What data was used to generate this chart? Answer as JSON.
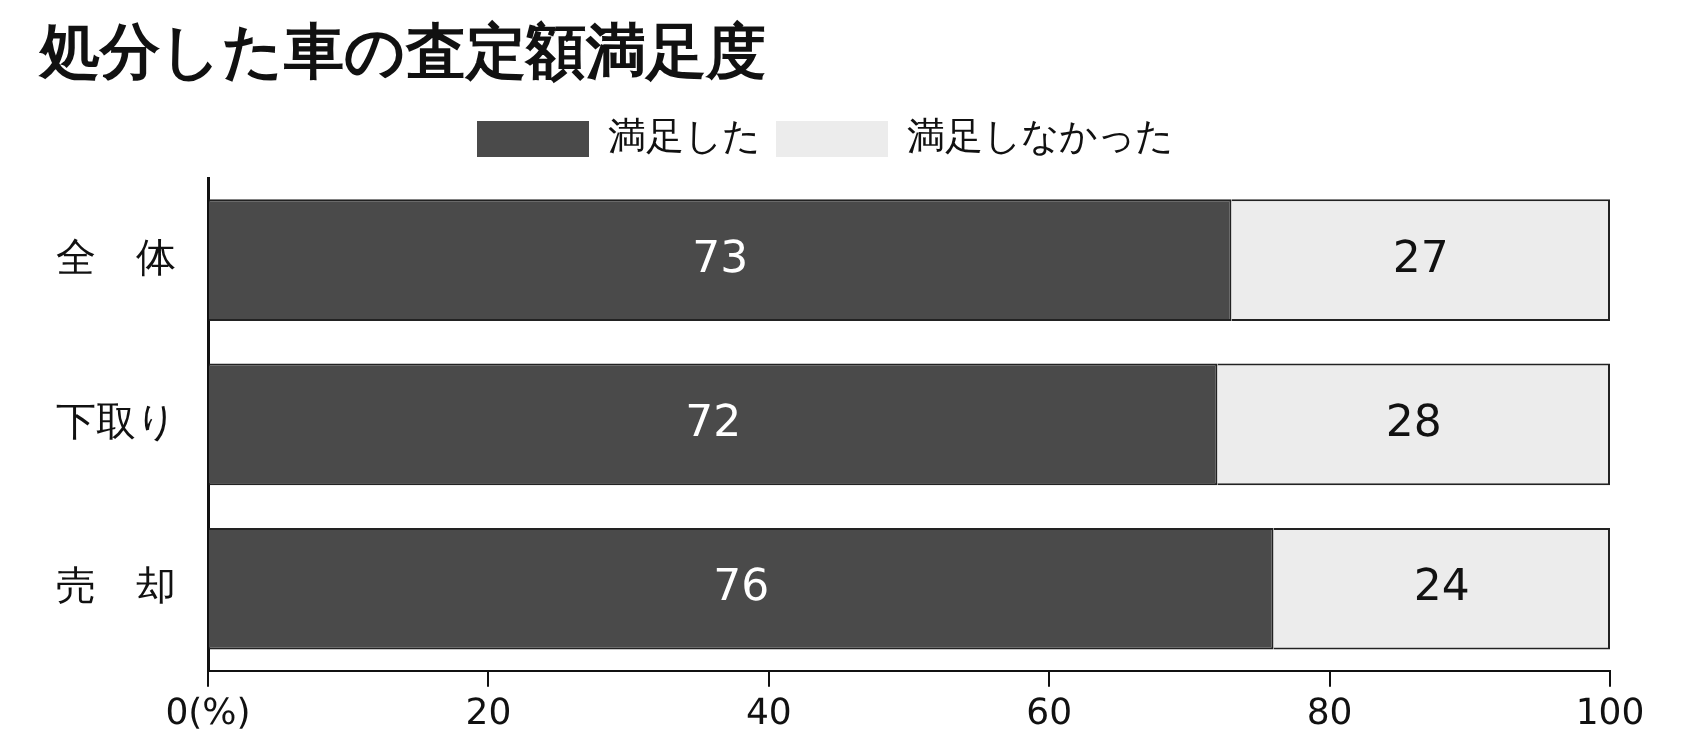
{
  "chart_data": {
    "type": "bar",
    "orientation": "horizontal",
    "stacked": true,
    "title": "処分した車の査定額満足度",
    "categories": [
      "全　体",
      "下取り",
      "売　却"
    ],
    "series": [
      {
        "name": "満足した",
        "color": "#4a4a4a",
        "values": [
          73,
          72,
          76
        ]
      },
      {
        "name": "満足しなかった",
        "color": "#ececec",
        "values": [
          27,
          28,
          24
        ]
      }
    ],
    "xlim": [
      0,
      100
    ],
    "xticks": [
      {
        "value": 0,
        "label": "0(%)"
      },
      20,
      40,
      60,
      80,
      100
    ],
    "data_labels": true,
    "legend": "top",
    "grid": false
  }
}
